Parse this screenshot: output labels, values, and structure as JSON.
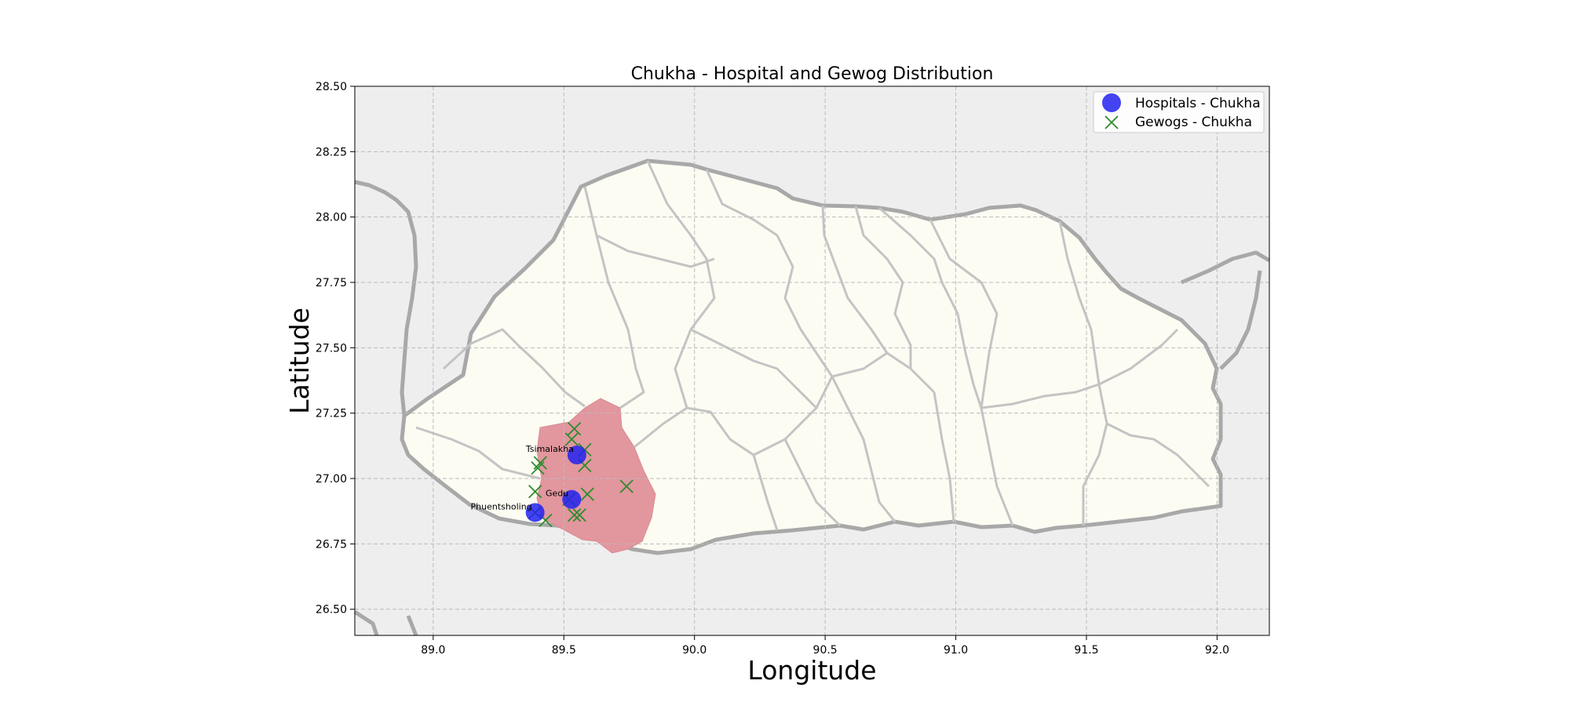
{
  "chart_data": {
    "type": "scatter",
    "title": "Chukha - Hospital and Gewog Distribution",
    "xlabel": "Longitude",
    "ylabel": "Latitude",
    "xlim": [
      88.7,
      92.2
    ],
    "ylim": [
      26.4,
      28.5
    ],
    "x_ticks": [
      "89.0",
      "89.5",
      "90.0",
      "90.5",
      "91.0",
      "91.5",
      "92.0"
    ],
    "y_ticks": [
      "26.50",
      "26.75",
      "27.00",
      "27.25",
      "27.50",
      "27.75",
      "28.00",
      "28.25",
      "28.50"
    ],
    "grid": true,
    "legend_position": "top-right",
    "series": [
      {
        "name": "Hospitals - Chukha",
        "marker": "circle",
        "color": "#2222ee",
        "points": [
          {
            "x": 89.55,
            "y": 27.09,
            "label": "Tsimalakha"
          },
          {
            "x": 89.53,
            "y": 26.92,
            "label": "Gedu"
          },
          {
            "x": 89.39,
            "y": 26.87,
            "label": "Phuentsholing"
          }
        ]
      },
      {
        "name": "Gewogs - Chukha",
        "marker": "x",
        "color": "#2e8b2e",
        "points": [
          {
            "x": 89.54,
            "y": 27.19
          },
          {
            "x": 89.53,
            "y": 27.15
          },
          {
            "x": 89.58,
            "y": 27.11
          },
          {
            "x": 89.41,
            "y": 27.06
          },
          {
            "x": 89.4,
            "y": 27.04
          },
          {
            "x": 89.58,
            "y": 27.05
          },
          {
            "x": 89.74,
            "y": 26.97
          },
          {
            "x": 89.39,
            "y": 26.95
          },
          {
            "x": 89.59,
            "y": 26.94
          },
          {
            "x": 89.52,
            "y": 26.92
          },
          {
            "x": 89.39,
            "y": 26.87
          },
          {
            "x": 89.56,
            "y": 26.86
          },
          {
            "x": 89.54,
            "y": 26.86
          },
          {
            "x": 89.43,
            "y": 26.84
          }
        ]
      }
    ]
  },
  "colors": {
    "ocean_background": "#eeeeee",
    "land_fill": "#fcfcf3",
    "highlight_district": "#e2969e",
    "border": "#a0a0a0",
    "grid": "#bbbbbb"
  }
}
